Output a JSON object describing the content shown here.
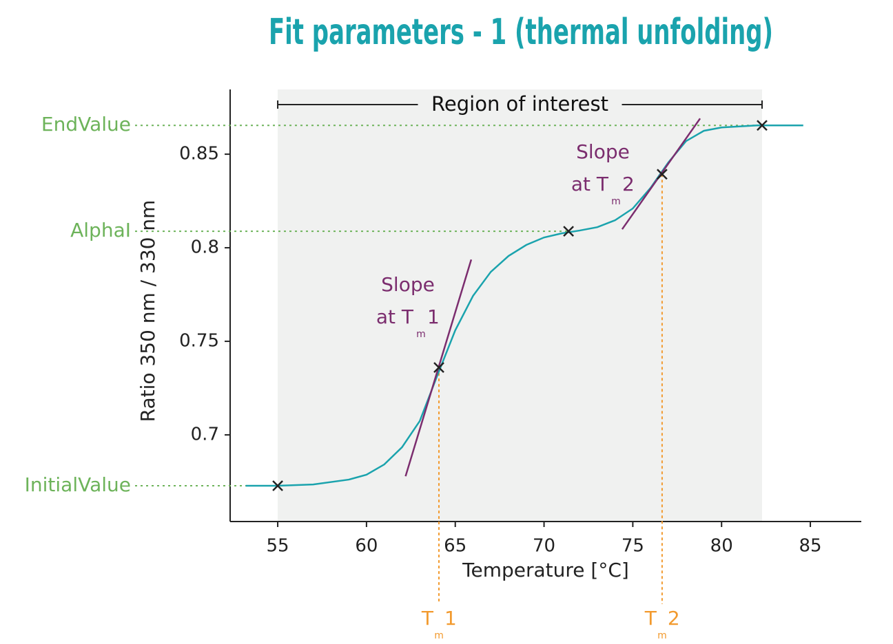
{
  "chart_data": {
    "type": "line",
    "title": "Fit parameters - 1 (thermal unfolding)",
    "x_label": "Temperature [°C]",
    "y_label": "Ratio 350 nm / 330 nm",
    "xlim": [
      52.32,
      87.87
    ],
    "ylim": [
      0.6537,
      0.8846
    ],
    "xticks": [
      55,
      60,
      65,
      70,
      75,
      80,
      85
    ],
    "yticks": [
      0.7,
      0.75,
      0.8,
      0.85
    ],
    "region": {
      "label": "Region of interest",
      "x": [
        55,
        82.28
      ],
      "color": "#f0f1f0"
    },
    "series": [
      {
        "color": "#1aa3ad",
        "x": [
          53.2,
          55,
          57,
          59,
          60,
          61,
          62,
          63,
          64,
          65,
          66,
          67,
          68,
          69,
          70,
          71,
          72,
          73,
          74,
          75,
          76,
          77,
          78,
          79,
          80,
          82,
          84.6
        ],
        "values": [
          0.6728,
          0.6728,
          0.6735,
          0.6761,
          0.6787,
          0.6842,
          0.6934,
          0.7074,
          0.732,
          0.7559,
          0.7743,
          0.7871,
          0.7956,
          0.8015,
          0.8055,
          0.8077,
          0.8092,
          0.811,
          0.8147,
          0.821,
          0.832,
          0.8456,
          0.857,
          0.8625,
          0.8643,
          0.8654,
          0.8654
        ]
      }
    ],
    "points": {
      "x": [
        55,
        64.08,
        71.38,
        76.65,
        82.28
      ],
      "values": [
        0.6728,
        0.736,
        0.8088,
        0.8393,
        0.8654
      ]
    },
    "slopes": [
      {
        "color": "#7b2d6e",
        "x": [
          62.2,
          65.9
        ],
        "values": [
          0.6779,
          0.7937
        ],
        "label": "Slope",
        "label2": "at T",
        "sub": "m",
        "suffix": "1"
      },
      {
        "color": "#7b2d6e",
        "x": [
          74.4,
          78.79
        ],
        "values": [
          0.8099,
          0.8691
        ],
        "label": "Slope",
        "label2": "at T",
        "sub": "m",
        "suffix": "2"
      }
    ],
    "levels": {
      "color": "#6db35a",
      "items": [
        {
          "label": "EndValue",
          "value": 0.8654,
          "x": 82.28
        },
        {
          "label": "AlphaI",
          "value": 0.8088,
          "x": 71.38
        },
        {
          "label": "InitialValue",
          "value": 0.6728,
          "x": 55
        }
      ]
    },
    "tms": {
      "color": "#f29a2e",
      "items": [
        {
          "value": 64.08,
          "y": 0.736,
          "label": "T",
          "sub": "m",
          "suffix": "1"
        },
        {
          "value": 76.65,
          "y": 0.8393,
          "label": "T",
          "sub": "m",
          "suffix": "2"
        }
      ]
    }
  }
}
